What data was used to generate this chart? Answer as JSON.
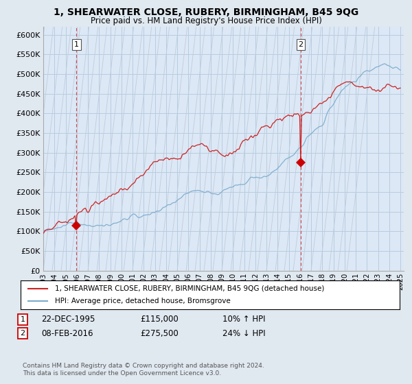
{
  "title": "1, SHEARWATER CLOSE, RUBERY, BIRMINGHAM, B45 9QG",
  "subtitle": "Price paid vs. HM Land Registry's House Price Index (HPI)",
  "yticks": [
    0,
    50000,
    100000,
    150000,
    200000,
    250000,
    300000,
    350000,
    400000,
    450000,
    500000,
    550000,
    600000
  ],
  "ylim": [
    0,
    620000
  ],
  "xlim_start": 1993.0,
  "xlim_end": 2025.3,
  "sale1_year": 1995.97,
  "sale1_price": 115000,
  "sale2_year": 2016.08,
  "sale2_price": 275500,
  "legend_line1": "1, SHEARWATER CLOSE, RUBERY, BIRMINGHAM, B45 9QG (detached house)",
  "legend_line2": "HPI: Average price, detached house, Bromsgrove",
  "footnote": "Contains HM Land Registry data © Crown copyright and database right 2024.\nThis data is licensed under the Open Government Licence v3.0.",
  "line_color_red": "#cc2222",
  "line_color_blue": "#7aaacc",
  "bg_color": "#e0e8f0",
  "plot_bg": "#dce8f5",
  "hatch_color": "#c0ccda",
  "grid_color": "#b8cce0",
  "marker_color": "#cc0000",
  "dashed_color": "#dd4444"
}
